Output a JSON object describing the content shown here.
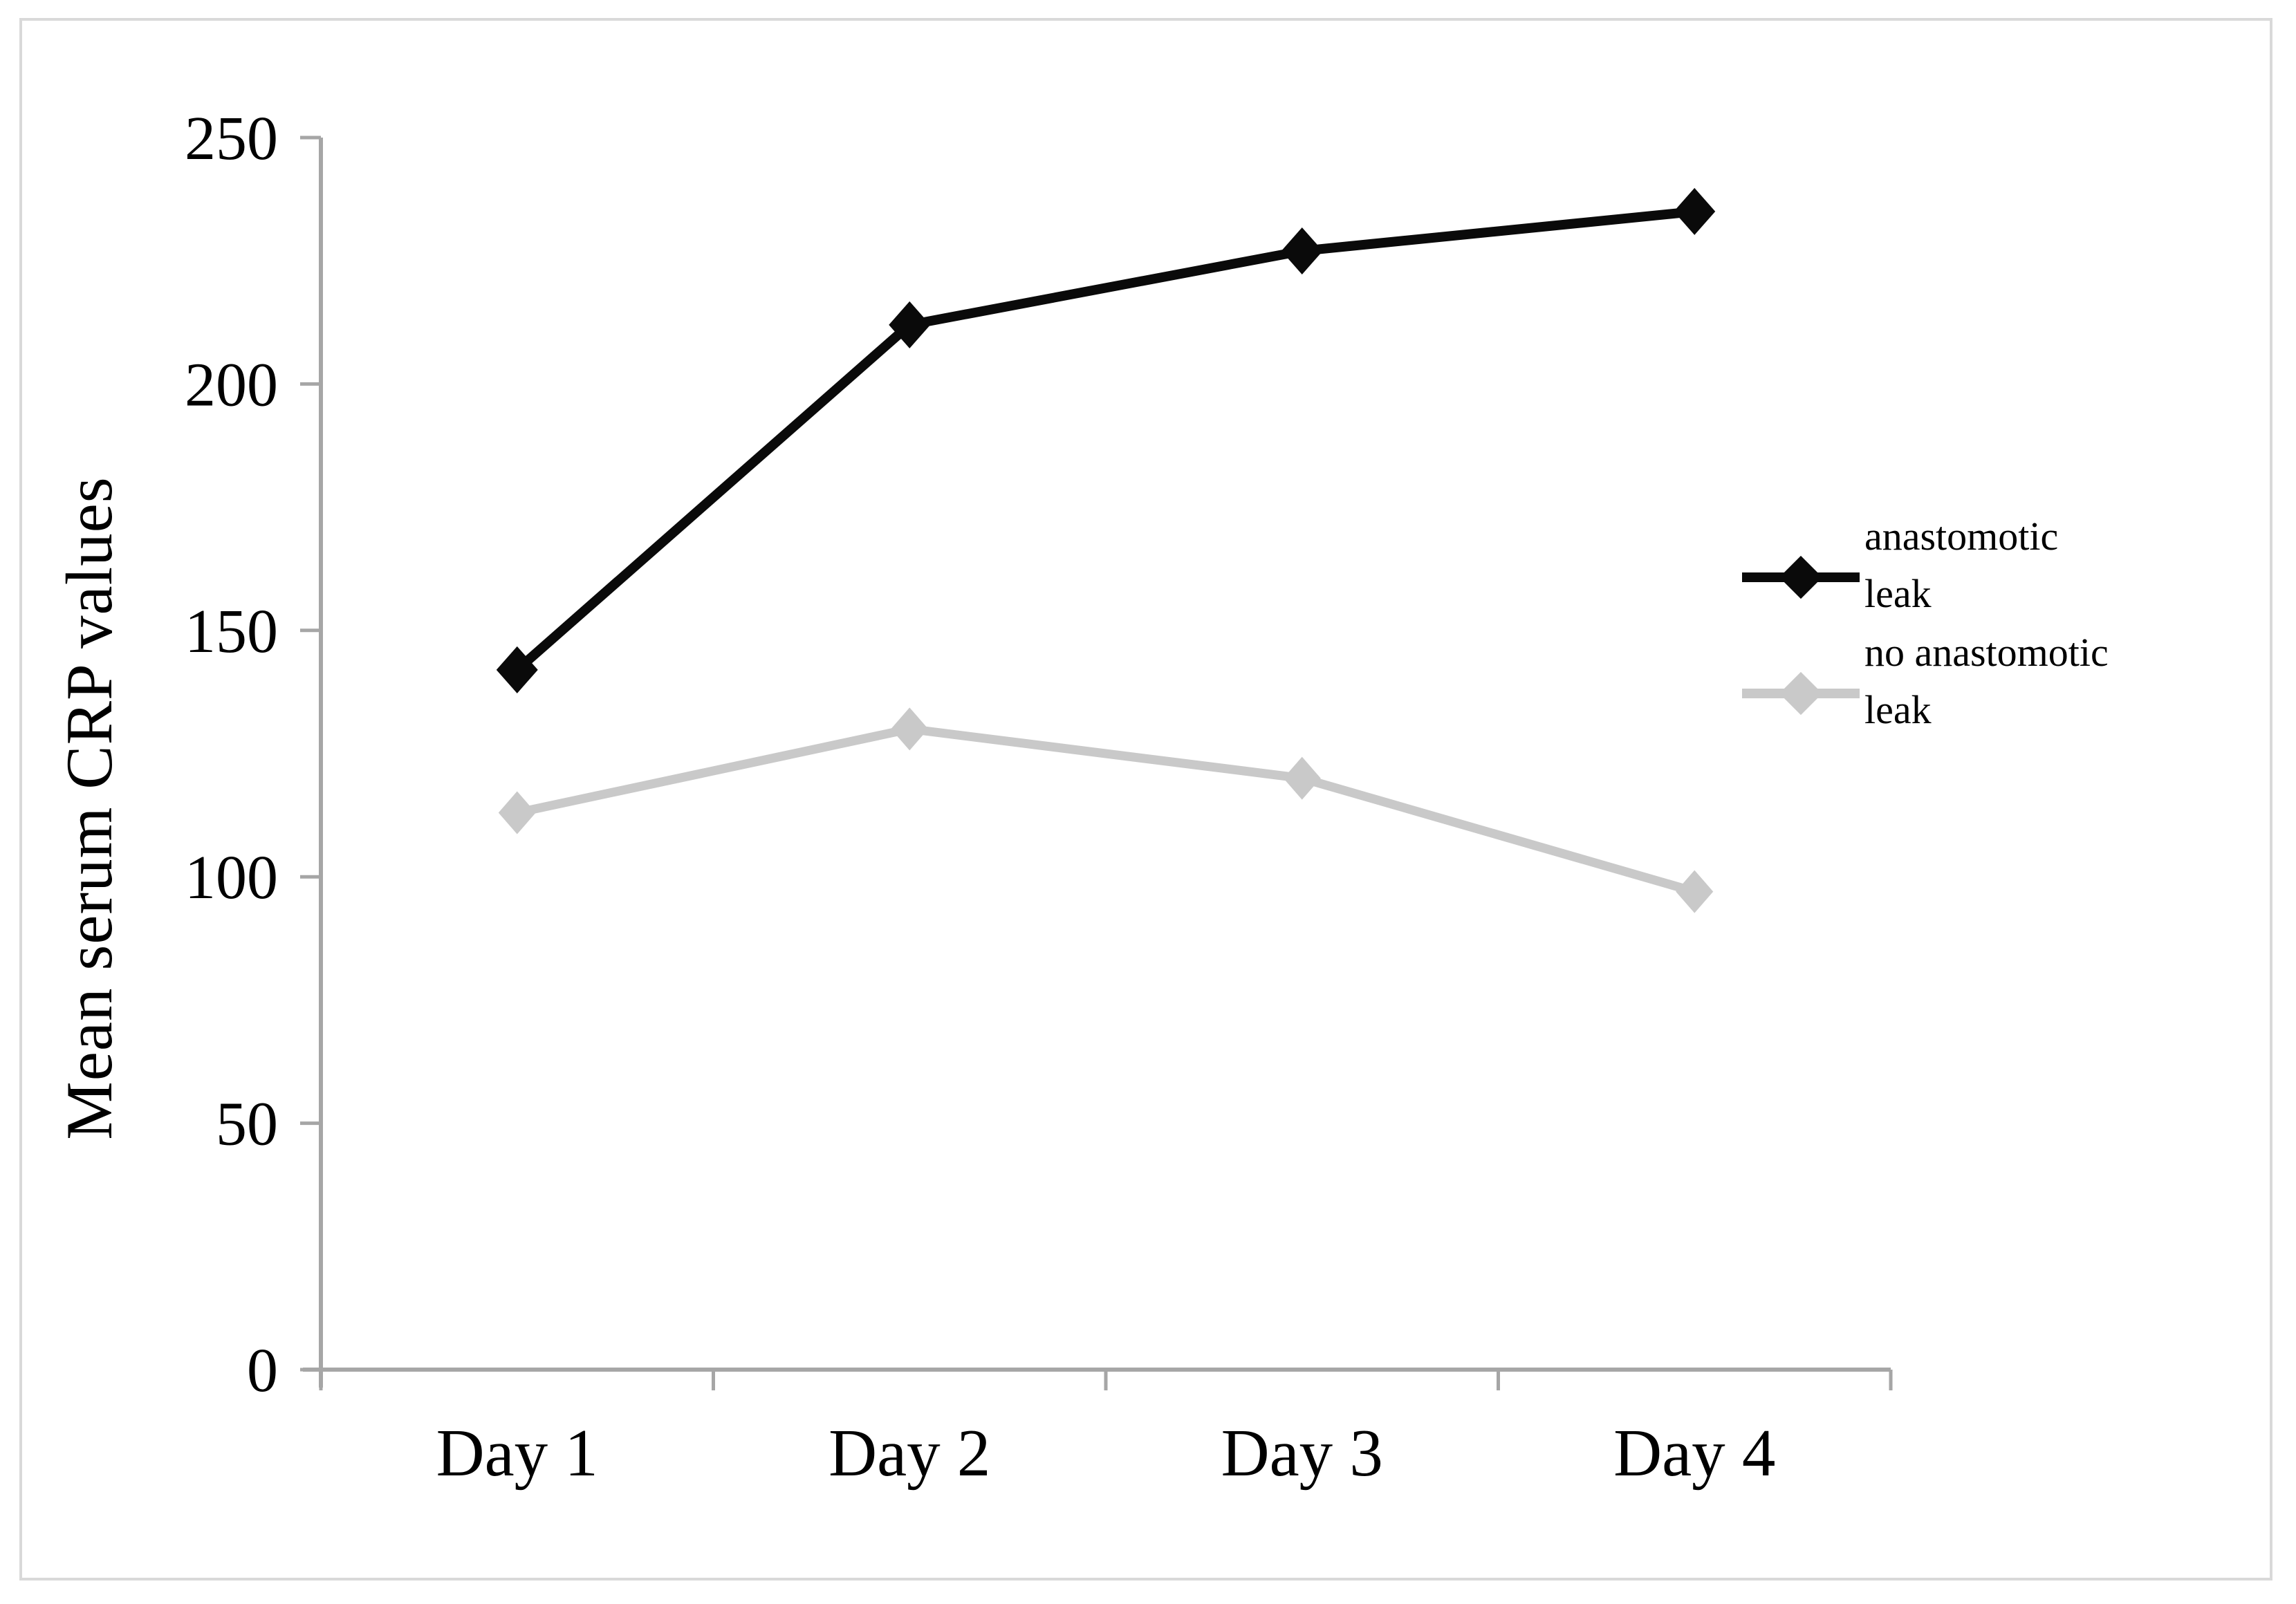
{
  "figure": {
    "background_color": "#ffffff",
    "border_color": "#d9d9d9"
  },
  "chart_data": {
    "type": "line",
    "title": "",
    "xlabel": "",
    "ylabel": "Mean serum CRP values",
    "categories": [
      "Day 1",
      "Day 2",
      "Day 3",
      "Day 4"
    ],
    "series": [
      {
        "name": "anastomotic leak",
        "color": "#0a0a0a",
        "marker": "diamond",
        "values": [
          142,
          212,
          227,
          235
        ]
      },
      {
        "name": "no anastomotic leak",
        "color": "#c9c9c9",
        "marker": "diamond",
        "values": [
          113,
          130,
          120,
          97
        ]
      }
    ],
    "ylim": [
      0,
      250
    ],
    "yticks": [
      0,
      50,
      100,
      150,
      200,
      250
    ],
    "grid": false,
    "axis_color": "#a6a6a6",
    "legend_position": "right-middle"
  }
}
